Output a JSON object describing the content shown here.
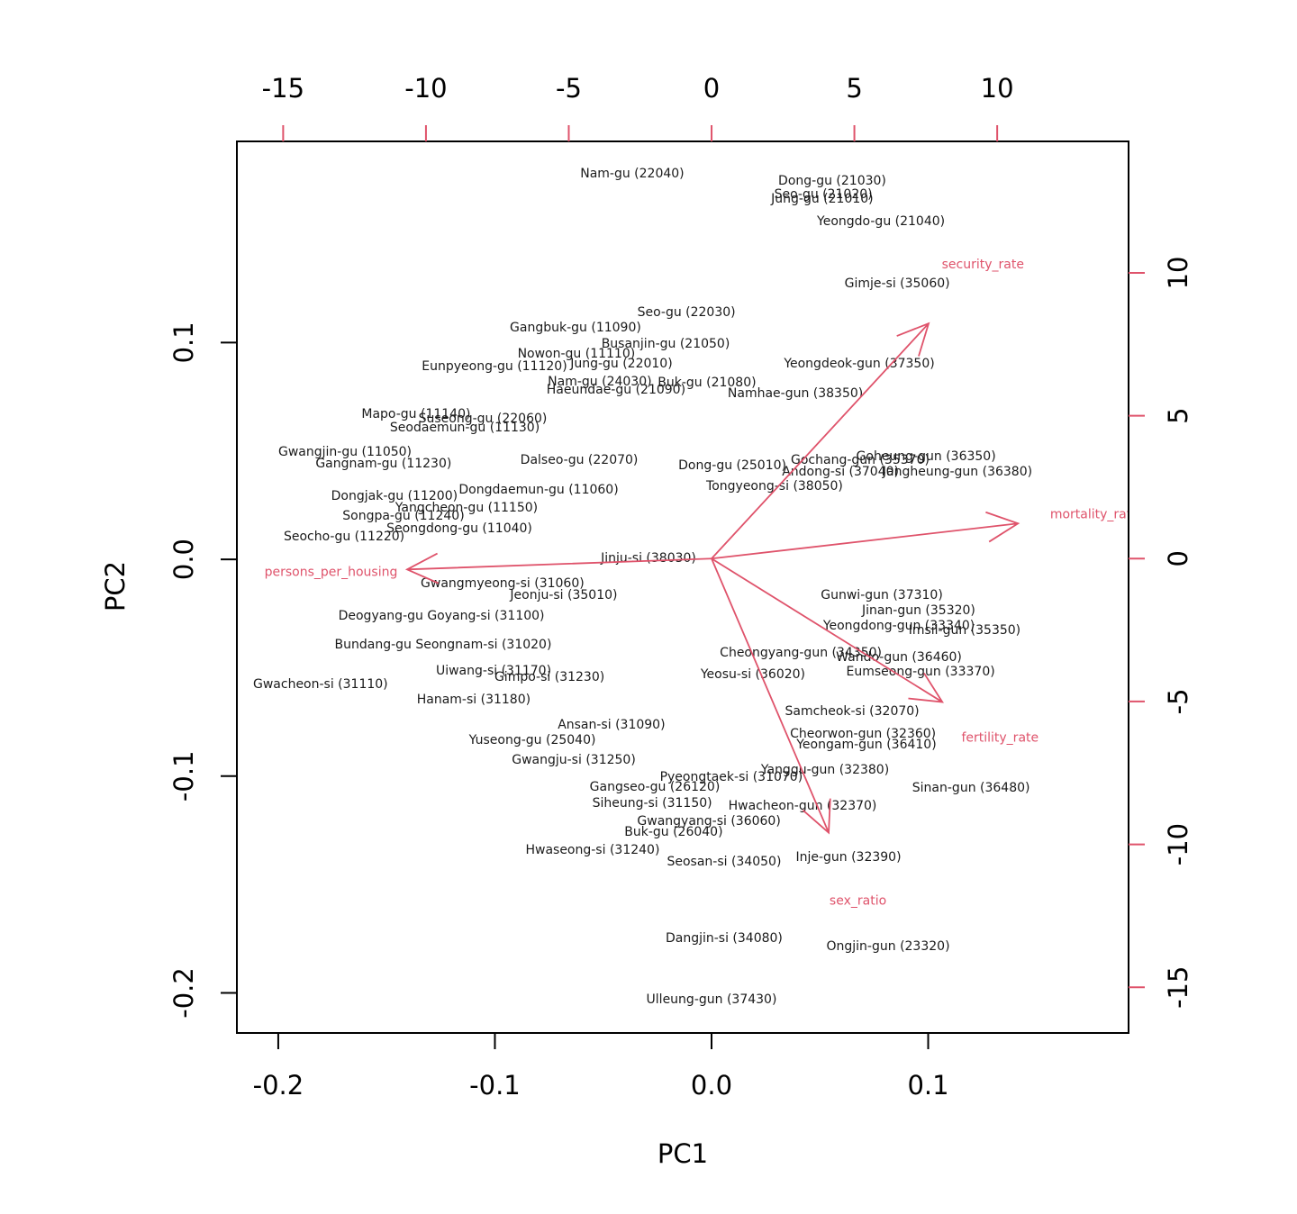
{
  "chart_data": {
    "type": "biplot",
    "xlabel": "PC1",
    "ylabel": "PC2",
    "xlim": [
      -0.2191,
      0.1925
    ],
    "ylim": [
      -0.2185,
      0.1928
    ],
    "xticks": [
      -0.2,
      -0.1,
      {
        "value": 0,
        "label": "0.0"
      },
      0.1
    ],
    "yticks": [
      -0.2,
      -0.1,
      {
        "value": 0,
        "label": "0.0"
      },
      0.1
    ],
    "x2lim": [
      -16.62,
      14.6
    ],
    "y2lim": [
      -16.6,
      14.6
    ],
    "x2ticks": [
      -15,
      -10,
      -5,
      0,
      5,
      10
    ],
    "y2ticks": [
      -15,
      -10,
      -5,
      0,
      5,
      10
    ],
    "point_color": "#1a1a1a",
    "arrow_color": "#DF536B",
    "scores": {
      "labels": [
        "Nam-gu (22040)",
        "Dong-gu (21030)",
        "Seo-gu (21020)",
        "Jung-gu (21010)",
        "Yeongdo-gu (21040)",
        "Gimje-si (35060)",
        "Seo-gu (22030)",
        "Gangbuk-gu (11090)",
        "Busanjin-gu (21050)",
        "Nowon-gu (11110)",
        "Jung-gu (22010)",
        "Eunpyeong-gu (11120)",
        "Yeongdeok-gun (37350)",
        "Nam-gu (24030)",
        "Buk-gu (21080)",
        "Haeundae-gu (21090)",
        "Namhae-gun (38350)",
        "Mapo-gu (11140)",
        "Suseong-gu (22060)",
        "Seodaemun-gu (11130)",
        "Gwangjin-gu (11050)",
        "Gangnam-gu (11230)",
        "Dalseo-gu (22070)",
        "Dong-gu (25010)",
        "Andong-si (37040)",
        "Jangheung-gun (36380)",
        "Goheung-gun (36350)",
        "Gochang-gun (35370)",
        "Tongyeong-si (38050)",
        "Dongdaemun-gu (11060)",
        "Dongjak-gu (11200)",
        "Yangcheon-gu (11150)",
        "Songpa-gu (11240)",
        "Seongdong-gu (11040)",
        "Seocho-gu (11220)",
        "Jinju-si (38030)",
        "Gwangmyeong-si (31060)",
        "Jeonju-si (35010)",
        "Gunwi-gun (37310)",
        "Jinan-gun (35320)",
        "Deogyang-gu Goyang-si (31100)",
        "Yeongdong-gun (33340)",
        "Imsil-gun (35350)",
        "Bundang-gu Seongnam-si (31020)",
        "Wando-gun (36460)",
        "Cheongyang-gun (34350)",
        "Uiwang-si (31170)",
        "Gimpo-si (31230)",
        "Eumseong-gun (33370)",
        "Yeosu-si (36020)",
        "Gwacheon-si (31110)",
        "Hanam-si (31180)",
        "Samcheok-si (32070)",
        "Cheorwon-gun (32360)",
        "Yeongam-gun (36410)",
        "Ansan-si (31090)",
        "Yuseong-gu (25040)",
        "Gwangju-si (31250)",
        "Yanggu-gun (32380)",
        "Sinan-gun (36480)",
        "Pyeongtaek-si (31070)",
        "Gangseo-gu (26120)",
        "Siheung-si (31150)",
        "Hwacheon-gun (32370)",
        "Gwangyang-si (36060)",
        "Buk-gu (26040)",
        "Hwaseong-si (31240)",
        "Seosan-si (34050)",
        "Inje-gun (32390)",
        "Dangjin-si (34080)",
        "Ongjin-gun (23320)",
        "Ulleung-gun (37430)"
      ],
      "x": [
        -0.0366,
        0.0557,
        0.0516,
        0.0511,
        0.0782,
        0.0857,
        -0.0116,
        -0.0628,
        -0.0212,
        -0.0624,
        -0.0416,
        -0.1002,
        0.0682,
        -0.0516,
        -0.0021,
        -0.0441,
        0.0387,
        -0.1364,
        -0.1056,
        -0.1139,
        -0.1692,
        -0.1514,
        -0.0611,
        0.0096,
        0.0595,
        0.1135,
        0.099,
        0.0686,
        0.0291,
        -0.0798,
        -0.1464,
        -0.1131,
        -0.1422,
        -0.1164,
        -0.1696,
        -0.0291,
        -0.0965,
        -0.0682,
        0.0786,
        0.0956,
        -0.1247,
        0.0865,
        0.1168,
        -0.1239,
        0.0865,
        0.0412,
        -0.1006,
        -0.0748,
        0.0965,
        0.0191,
        -0.1805,
        -0.1098,
        0.0649,
        0.0699,
        0.0715,
        -0.0462,
        -0.0827,
        -0.0636,
        0.0524,
        0.1198,
        0.0091,
        -0.0262,
        -0.0274,
        0.042,
        -0.0012,
        -0.0175,
        -0.0549,
        0.0058,
        0.0632,
        0.0058,
        0.0815,
        0.0
      ],
      "y": [
        0.1778,
        0.1745,
        0.1683,
        0.1662,
        0.1558,
        0.1271,
        0.1138,
        0.1068,
        0.0993,
        0.0947,
        0.0902,
        0.0889,
        0.0902,
        0.0818,
        0.0814,
        0.0781,
        0.0764,
        0.0669,
        0.0648,
        0.0607,
        0.0494,
        0.044,
        0.0457,
        0.0432,
        0.0403,
        0.0403,
        0.0474,
        0.0457,
        0.0337,
        0.032,
        0.0291,
        0.0237,
        0.0199,
        0.0141,
        0.0104,
        0.0004,
        -0.0112,
        -0.0166,
        -0.0166,
        -0.0237,
        -0.0262,
        -0.0307,
        -0.0328,
        -0.0395,
        -0.0453,
        -0.0432,
        -0.0515,
        -0.0544,
        -0.0519,
        -0.0532,
        -0.0577,
        -0.0648,
        -0.0702,
        -0.0806,
        -0.0856,
        -0.0764,
        -0.0835,
        -0.0926,
        -0.0972,
        -0.1055,
        -0.1005,
        -0.1051,
        -0.1126,
        -0.1138,
        -0.1209,
        -0.1259,
        -0.1342,
        -0.1396,
        -0.1375,
        -0.1749,
        -0.1786,
        -0.2032
      ]
    },
    "loadings": {
      "labels": [
        "security_rate",
        "mortality_rate",
        "fertility_rate",
        "sex_ratio",
        "persons_per_housing"
      ],
      "x": [
        7.6,
        10.73,
        8.08,
        4.1,
        -10.66
      ],
      "y": [
        8.23,
        1.23,
        -5.02,
        -9.59,
        -0.38
      ]
    }
  }
}
